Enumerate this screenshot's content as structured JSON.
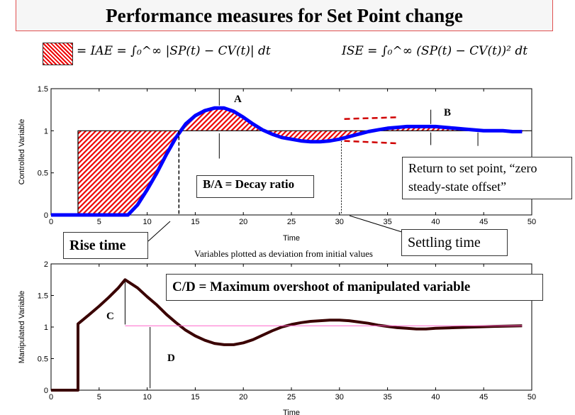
{
  "title": "Performance measures for Set Point change",
  "equations": {
    "iae": "= IAE = ∫₀^∞ |SP(t) − CV(t)| dt",
    "ise": "ISE = ∫₀^∞ (SP(t) − CV(t))² dt"
  },
  "annotations": {
    "a": "A",
    "b": "B",
    "decay": "B/A = Decay ratio",
    "return": "Return to set point, “zero steady-state offset”",
    "rise": "Rise time",
    "settling": "Settling time",
    "caption": "Variables plotted as deviation from initial values",
    "cd": "C/D = Maximum overshoot of manipulated variable",
    "c": "C",
    "d": "D"
  },
  "colors": {
    "cv": "#0000ff",
    "setpoint": "#000000",
    "iae_hatch": "#e00000",
    "mv": "#3a0000",
    "mv_ref": "#ff66cc",
    "settling_band": "#d00000"
  },
  "chart_data": [
    {
      "type": "line",
      "xlabel": "Time",
      "ylabel": "Controlled Variable",
      "xlim": [
        0,
        50
      ],
      "ylim": [
        0,
        1.5
      ],
      "xticks": [
        0,
        5,
        10,
        15,
        20,
        25,
        30,
        35,
        40,
        45,
        50
      ],
      "yticks": [
        0,
        0.5,
        1,
        1.5
      ],
      "series": [
        {
          "role": "setpoint",
          "x": [
            0,
            2.8,
            2.8,
            50
          ],
          "y": [
            0,
            0,
            1,
            1
          ]
        },
        {
          "role": "cv",
          "x": [
            0,
            8,
            9,
            10,
            11,
            12,
            13,
            14,
            15,
            16,
            17,
            18,
            19,
            20,
            21,
            22,
            23,
            24,
            25,
            26,
            27,
            28,
            29,
            30,
            31,
            32,
            33,
            34,
            35,
            36,
            37,
            38,
            39,
            40,
            41,
            42,
            43,
            44,
            45,
            46,
            47,
            48,
            49
          ],
          "y": [
            0,
            0,
            0.12,
            0.3,
            0.5,
            0.72,
            0.92,
            1.08,
            1.18,
            1.24,
            1.27,
            1.27,
            1.23,
            1.16,
            1.08,
            1.01,
            0.96,
            0.92,
            0.9,
            0.88,
            0.87,
            0.87,
            0.88,
            0.9,
            0.93,
            0.96,
            0.99,
            1.01,
            1.03,
            1.04,
            1.05,
            1.05,
            1.05,
            1.05,
            1.04,
            1.03,
            1.02,
            1.01,
            1.0,
            1.0,
            1.0,
            0.99,
            0.99
          ]
        }
      ]
    },
    {
      "type": "line",
      "xlabel": "Time",
      "ylabel": "Manipulated Variable",
      "xlim": [
        0,
        50
      ],
      "ylim": [
        0,
        2
      ],
      "xticks": [
        0,
        5,
        10,
        15,
        20,
        25,
        30,
        35,
        40,
        45,
        50
      ],
      "yticks": [
        0,
        0.5,
        1,
        1.5,
        2
      ],
      "series": [
        {
          "role": "mv",
          "x": [
            0,
            2.8,
            2.8,
            4,
            5,
            6,
            7,
            7.7,
            9,
            10,
            11,
            12,
            13,
            14,
            15,
            16,
            17,
            18,
            19,
            20,
            21,
            22,
            23,
            24,
            25,
            26,
            27,
            28,
            29,
            30,
            31,
            32,
            33,
            34,
            35,
            36,
            37,
            38,
            39,
            40,
            42,
            44,
            46,
            49
          ],
          "y": [
            0,
            0,
            1.05,
            1.2,
            1.33,
            1.47,
            1.62,
            1.75,
            1.62,
            1.48,
            1.35,
            1.2,
            1.07,
            0.95,
            0.86,
            0.79,
            0.74,
            0.72,
            0.72,
            0.75,
            0.8,
            0.87,
            0.94,
            1.0,
            1.04,
            1.07,
            1.09,
            1.1,
            1.11,
            1.11,
            1.1,
            1.08,
            1.06,
            1.03,
            1.01,
            0.99,
            0.98,
            0.97,
            0.97,
            0.98,
            0.99,
            1.0,
            1.01,
            1.02
          ]
        },
        {
          "role": "reference",
          "x": [
            7.7,
            49
          ],
          "y": [
            1.02,
            1.02
          ]
        }
      ]
    }
  ]
}
